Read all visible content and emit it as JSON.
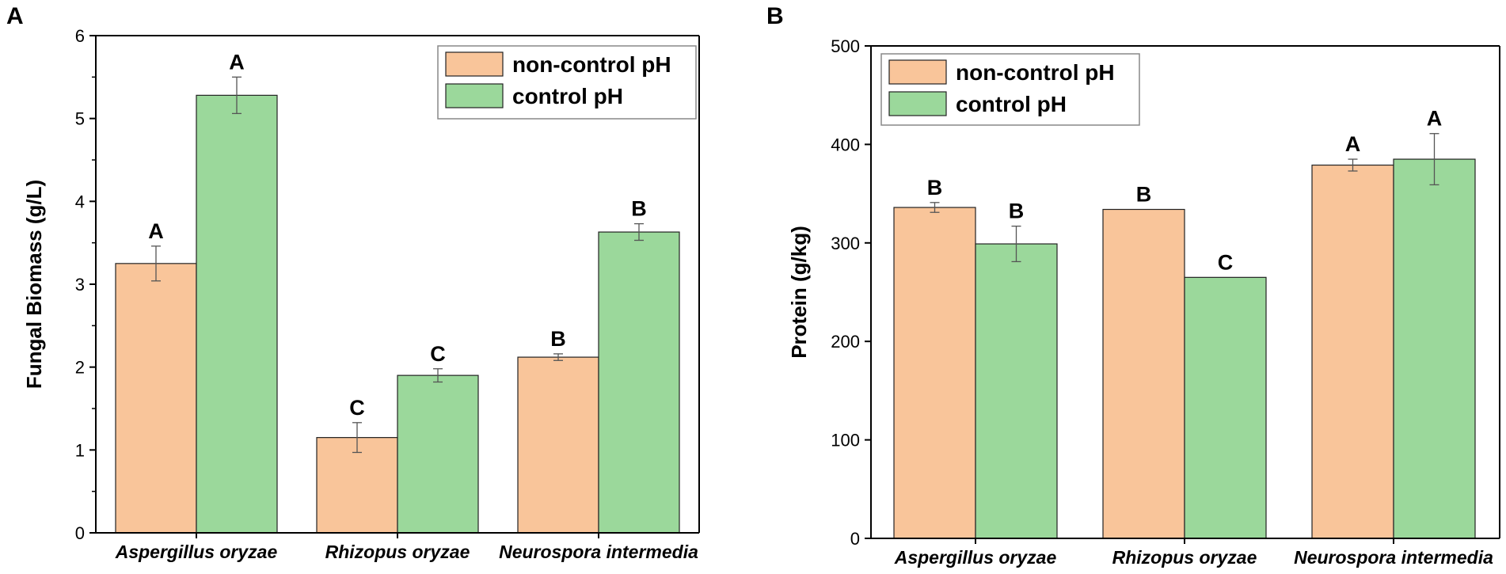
{
  "figure": {
    "panel_letters": [
      "A",
      "B"
    ]
  },
  "colors": {
    "non_control": "#F9C59A",
    "control": "#9BD89B"
  },
  "chart_data": [
    {
      "type": "bar",
      "panel": "A",
      "title": "",
      "xlabel": "",
      "ylabel": "Fungal Biomass (g/L)",
      "ylim": [
        0,
        6
      ],
      "yticks": [
        0,
        1,
        2,
        3,
        4,
        5,
        6
      ],
      "categories": [
        "Aspergillus oryzae",
        "Rhizopus oryzae",
        "Neurospora intermedia"
      ],
      "legend_position": "top-right",
      "series": [
        {
          "name": "non-control pH",
          "values": [
            3.25,
            1.15,
            2.12
          ],
          "errors": [
            0.21,
            0.18,
            0.04
          ],
          "letters": [
            "A",
            "C",
            "B"
          ]
        },
        {
          "name": "control pH",
          "values": [
            5.28,
            1.9,
            3.63
          ],
          "errors": [
            0.22,
            0.08,
            0.1
          ],
          "letters": [
            "A",
            "C",
            "B"
          ]
        }
      ]
    },
    {
      "type": "bar",
      "panel": "B",
      "title": "",
      "xlabel": "",
      "ylabel": "Protein (g/kg)",
      "ylim": [
        0,
        500
      ],
      "yticks": [
        0,
        100,
        200,
        300,
        400,
        500
      ],
      "categories": [
        "Aspergillus oryzae",
        "Rhizopus oryzae",
        "Neurospora intermedia"
      ],
      "legend_position": "top-left",
      "series": [
        {
          "name": "non-control pH",
          "values": [
            336,
            334,
            379
          ],
          "errors": [
            5,
            0,
            6
          ],
          "letters": [
            "B",
            "B",
            "A"
          ]
        },
        {
          "name": "control pH",
          "values": [
            299,
            265,
            385
          ],
          "errors": [
            18,
            0,
            26
          ],
          "letters": [
            "B",
            "C",
            "A"
          ]
        }
      ]
    }
  ]
}
